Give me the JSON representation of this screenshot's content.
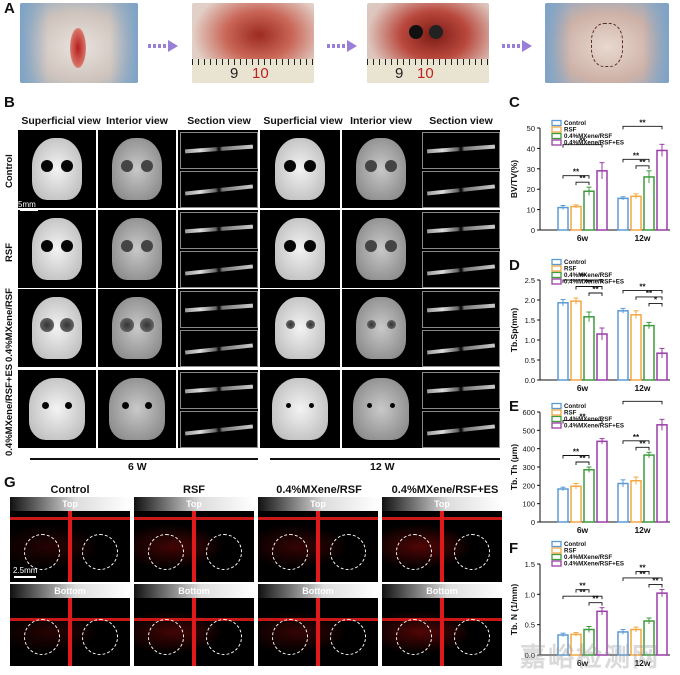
{
  "panel_labels": {
    "a": "A",
    "b": "B",
    "c": "C",
    "d": "D",
    "e": "E",
    "f": "F",
    "g": "G"
  },
  "panelA": {
    "ruler_left": {
      "n1": "9",
      "n2": "10"
    },
    "ruler_right": {
      "n1": "9",
      "n2": "10"
    }
  },
  "panelB": {
    "headers": [
      "Superficial view",
      "Interior view",
      "Section view",
      "Superficial view",
      "Interior view",
      "Section view"
    ],
    "rows": [
      "Control",
      "RSF",
      "0.4%MXene/RSF",
      "0.4%MXene/RSF+ES"
    ],
    "scale_bar": "5mm",
    "time_left": "6 W",
    "time_right": "12 W"
  },
  "panelG": {
    "columns": [
      "Control",
      "RSF",
      "0.4%MXene/RSF",
      "0.4%MXene/RSF+ES"
    ],
    "top_label": "Top",
    "bottom_label": "Bottom",
    "scale_bar": "2.5mm"
  },
  "legend": [
    "Control",
    "RSF",
    "0.4%MXene/RSF",
    "0.4%MXene/RSF+ES"
  ],
  "colors": {
    "control": "#5B9BD5",
    "rsf": "#F4A742",
    "mx": "#3E9B3E",
    "es": "#9B3DA8",
    "vessel": "#E0191B"
  },
  "watermark": "嘉峪检测网",
  "chart_data": [
    {
      "type": "bar",
      "id": "C",
      "ylabel": "BV/TV(%)",
      "categories": [
        "6w",
        "12w"
      ],
      "ylim": [
        0,
        50
      ],
      "yticks": [
        0,
        10,
        20,
        30,
        40,
        50
      ],
      "series": [
        {
          "name": "Control",
          "values": [
            11,
            15.5
          ]
        },
        {
          "name": "RSF",
          "values": [
            11.5,
            16.5
          ]
        },
        {
          "name": "0.4%MXene/RSF",
          "values": [
            19,
            26
          ]
        },
        {
          "name": "0.4%MXene/RSF+ES",
          "values": [
            29,
            39
          ]
        }
      ],
      "errors": [
        [
          1,
          0.8
        ],
        [
          0.8,
          1.2
        ],
        [
          2,
          3
        ],
        [
          4,
          3
        ]
      ],
      "sig": "**"
    },
    {
      "type": "bar",
      "id": "D",
      "ylabel": "Tb.Sp(mm)",
      "categories": [
        "6w",
        "12w"
      ],
      "ylim": [
        0,
        2.5
      ],
      "yticks": [
        0.0,
        0.5,
        1.0,
        1.5,
        2.0,
        2.5
      ],
      "series": [
        {
          "name": "Control",
          "values": [
            1.93,
            1.73
          ]
        },
        {
          "name": "RSF",
          "values": [
            1.97,
            1.63
          ]
        },
        {
          "name": "0.4%MXene/RSF",
          "values": [
            1.58,
            1.36
          ]
        },
        {
          "name": "0.4%MXene/RSF+ES",
          "values": [
            1.15,
            0.67
          ]
        }
      ],
      "errors": [
        [
          0.08,
          0.06
        ],
        [
          0.08,
          0.1
        ],
        [
          0.12,
          0.08
        ],
        [
          0.15,
          0.12
        ]
      ],
      "sig": "**",
      "sig_single": "*"
    },
    {
      "type": "bar",
      "id": "E",
      "ylabel": "Tb. Th (μm)",
      "categories": [
        "6w",
        "12w"
      ],
      "ylim": [
        0,
        600
      ],
      "yticks": [
        0,
        100,
        200,
        300,
        400,
        500,
        600
      ],
      "series": [
        {
          "name": "Control",
          "values": [
            180,
            210
          ]
        },
        {
          "name": "RSF",
          "values": [
            195,
            225
          ]
        },
        {
          "name": "0.4%MXene/RSF",
          "values": [
            285,
            365
          ]
        },
        {
          "name": "0.4%MXene/RSF+ES",
          "values": [
            440,
            530
          ]
        }
      ],
      "errors": [
        [
          10,
          20
        ],
        [
          15,
          20
        ],
        [
          15,
          15
        ],
        [
          15,
          30
        ]
      ],
      "sig": "**"
    },
    {
      "type": "bar",
      "id": "F",
      "ylabel": "Tb. N (1/mm)",
      "categories": [
        "6w",
        "12w"
      ],
      "ylim": [
        0,
        1.5
      ],
      "yticks": [
        0.0,
        0.5,
        1.0,
        1.5
      ],
      "series": [
        {
          "name": "Control",
          "values": [
            0.33,
            0.38
          ]
        },
        {
          "name": "RSF",
          "values": [
            0.34,
            0.42
          ]
        },
        {
          "name": "0.4%MXene/RSF",
          "values": [
            0.42,
            0.56
          ]
        },
        {
          "name": "0.4%MXene/RSF+ES",
          "values": [
            0.72,
            1.02
          ]
        }
      ],
      "errors": [
        [
          0.03,
          0.04
        ],
        [
          0.03,
          0.04
        ],
        [
          0.05,
          0.05
        ],
        [
          0.06,
          0.06
        ]
      ],
      "sig": "**"
    }
  ]
}
